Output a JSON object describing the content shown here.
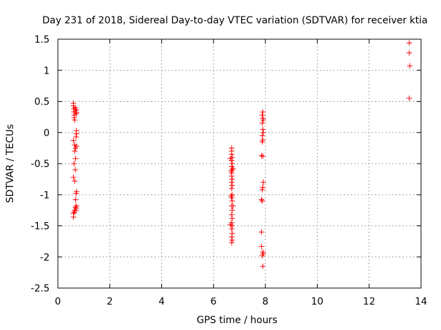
{
  "chart_data": {
    "type": "scatter",
    "title": "Day 231 of 2018, Sidereal Day-to-day VTEC variation (SDTVAR) for receiver ktia",
    "xlabel": "GPS time / hours",
    "ylabel": "SDTVAR / TECUs",
    "xlim": [
      0,
      14
    ],
    "ylim": [
      -2.5,
      1.5
    ],
    "xticks": [
      0,
      2,
      4,
      6,
      8,
      10,
      12,
      14
    ],
    "xtick_labels": [
      "0",
      "2",
      "4",
      "6",
      "8",
      "10",
      "12",
      "14"
    ],
    "yticks": [
      -2.5,
      -2,
      -1.5,
      -1,
      -0.5,
      0,
      0.5,
      1,
      1.5
    ],
    "ytick_labels": [
      "-2.5",
      "-2",
      "-1.5",
      "-1",
      "-0.5",
      "0",
      "0.5",
      "1",
      "1.5"
    ],
    "grid": true,
    "marker": "+",
    "color": "#ff0000",
    "points": [
      [
        0.6,
        0.47
      ],
      [
        0.6,
        0.43
      ],
      [
        0.62,
        0.38
      ],
      [
        0.62,
        0.33
      ],
      [
        0.63,
        0.28
      ],
      [
        0.63,
        0.24
      ],
      [
        0.65,
        0.2
      ],
      [
        0.67,
        0.4
      ],
      [
        0.68,
        0.35
      ],
      [
        0.7,
        0.37
      ],
      [
        0.72,
        0.32
      ],
      [
        0.7,
        0.3
      ],
      [
        0.72,
        0.03
      ],
      [
        0.72,
        -0.02
      ],
      [
        0.7,
        -0.07
      ],
      [
        0.6,
        -0.13
      ],
      [
        0.65,
        -0.2
      ],
      [
        0.68,
        -0.25
      ],
      [
        0.65,
        -0.3
      ],
      [
        0.72,
        -0.22
      ],
      [
        0.68,
        -0.42
      ],
      [
        0.62,
        -0.5
      ],
      [
        0.67,
        -0.6
      ],
      [
        0.6,
        -0.72
      ],
      [
        0.65,
        -0.78
      ],
      [
        0.72,
        -0.95
      ],
      [
        0.7,
        -0.98
      ],
      [
        0.68,
        -1.08
      ],
      [
        0.72,
        -1.18
      ],
      [
        0.7,
        -1.22
      ],
      [
        0.65,
        -1.25
      ],
      [
        0.63,
        -1.28
      ],
      [
        0.6,
        -1.3
      ],
      [
        0.6,
        -1.36
      ],
      [
        0.7,
        -1.25
      ],
      [
        0.68,
        -1.2
      ],
      [
        6.7,
        -0.25
      ],
      [
        6.7,
        -0.3
      ],
      [
        6.7,
        -0.35
      ],
      [
        6.72,
        -0.4
      ],
      [
        6.7,
        -0.45
      ],
      [
        6.72,
        -0.5
      ],
      [
        6.7,
        -0.55
      ],
      [
        6.72,
        -0.6
      ],
      [
        6.7,
        -0.65
      ],
      [
        6.7,
        -0.7
      ],
      [
        6.72,
        -0.75
      ],
      [
        6.7,
        -0.8
      ],
      [
        6.72,
        -0.85
      ],
      [
        6.7,
        -0.9
      ],
      [
        6.72,
        -1.0
      ],
      [
        6.7,
        -1.05
      ],
      [
        6.72,
        -1.1
      ],
      [
        6.7,
        -1.18
      ],
      [
        6.72,
        -1.25
      ],
      [
        6.7,
        -1.32
      ],
      [
        6.72,
        -1.38
      ],
      [
        6.7,
        -1.45
      ],
      [
        6.72,
        -1.5
      ],
      [
        6.7,
        -1.55
      ],
      [
        6.72,
        -1.62
      ],
      [
        6.7,
        -1.68
      ],
      [
        6.72,
        -1.73
      ],
      [
        6.7,
        -1.77
      ],
      [
        6.65,
        -0.42
      ],
      [
        6.68,
        -0.62
      ],
      [
        6.68,
        -1.02
      ],
      [
        6.65,
        -1.48
      ],
      [
        6.75,
        -0.58
      ],
      [
        6.75,
        -1.18
      ],
      [
        7.9,
        0.33
      ],
      [
        7.88,
        0.28
      ],
      [
        7.9,
        0.23
      ],
      [
        7.92,
        0.2
      ],
      [
        7.88,
        0.15
      ],
      [
        7.9,
        0.05
      ],
      [
        7.92,
        0.0
      ],
      [
        7.88,
        -0.05
      ],
      [
        7.9,
        -0.12
      ],
      [
        7.88,
        -0.15
      ],
      [
        7.85,
        -0.37
      ],
      [
        7.9,
        -0.38
      ],
      [
        7.92,
        -0.8
      ],
      [
        7.9,
        -0.88
      ],
      [
        7.88,
        -0.92
      ],
      [
        7.85,
        -1.08
      ],
      [
        7.88,
        -1.1
      ],
      [
        7.85,
        -1.6
      ],
      [
        7.85,
        -1.83
      ],
      [
        7.9,
        -1.92
      ],
      [
        7.92,
        -1.95
      ],
      [
        7.88,
        -1.98
      ],
      [
        7.9,
        -2.15
      ],
      [
        13.55,
        1.44
      ],
      [
        13.55,
        1.28
      ],
      [
        13.57,
        1.07
      ],
      [
        13.55,
        0.55
      ]
    ]
  }
}
